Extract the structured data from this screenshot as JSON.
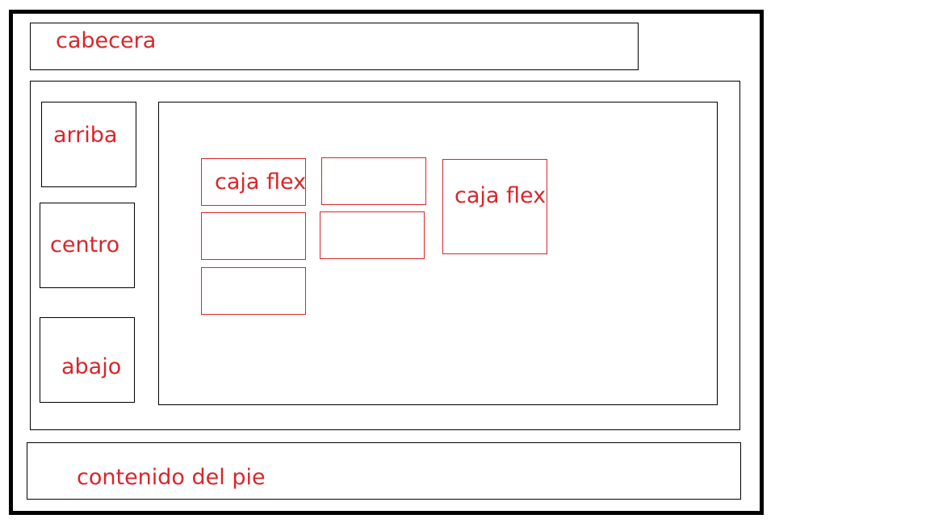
{
  "colors": {
    "outline": "#000000",
    "label": "#d9262b",
    "flex_box_border": "#d9262b"
  },
  "header": {
    "label": "cabecera"
  },
  "sidebar": {
    "top_label": "arriba",
    "middle_label": "centro",
    "bottom_label": "abajo"
  },
  "main": {
    "flex_box_label_1": "caja flex",
    "flex_box_label_2": "caja flex"
  },
  "footer": {
    "label": "contenido del pie"
  }
}
